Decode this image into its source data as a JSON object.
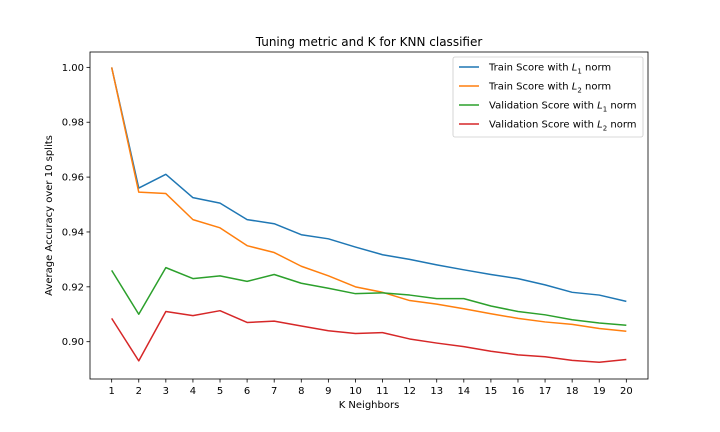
{
  "chart_data": {
    "type": "line",
    "title": "Tuning metric and K for KNN classifier",
    "xlabel": "K Neighbors",
    "ylabel": "Average Accuracy over 10 splits",
    "x": [
      1,
      2,
      3,
      4,
      5,
      6,
      7,
      8,
      9,
      10,
      11,
      12,
      13,
      14,
      15,
      16,
      17,
      18,
      19,
      20
    ],
    "xlim": [
      0.2,
      20.8
    ],
    "ylim": [
      0.8864,
      1.0056
    ],
    "yticks": [
      0.9,
      0.92,
      0.94,
      0.96,
      0.98,
      1.0
    ],
    "ytick_labels": [
      "0.90",
      "0.92",
      "0.94",
      "0.96",
      "0.98",
      "1.00"
    ],
    "grid": false,
    "legend_position": "top-right",
    "series": [
      {
        "name_prefix": "Train Score with ",
        "name_var": "L",
        "name_sub": "1",
        "name_suffix": " norm",
        "color": "#1f77b4",
        "values": [
          1.0,
          0.956,
          0.961,
          0.9525,
          0.9505,
          0.9445,
          0.943,
          0.939,
          0.9375,
          0.9345,
          0.9317,
          0.93,
          0.928,
          0.9262,
          0.9245,
          0.923,
          0.9207,
          0.918,
          0.917,
          0.9147
        ]
      },
      {
        "name_prefix": "Train Score with ",
        "name_var": "L",
        "name_sub": "2",
        "name_suffix": " norm",
        "color": "#ff7f0e",
        "values": [
          1.0,
          0.9545,
          0.954,
          0.9445,
          0.9415,
          0.935,
          0.9325,
          0.9275,
          0.924,
          0.92,
          0.918,
          0.915,
          0.9137,
          0.912,
          0.9102,
          0.9085,
          0.9072,
          0.9063,
          0.9048,
          0.9038
        ]
      },
      {
        "name_prefix": "Validation Score with ",
        "name_var": "L",
        "name_sub": "1",
        "name_suffix": " norm",
        "color": "#2ca02c",
        "values": [
          0.926,
          0.91,
          0.927,
          0.923,
          0.924,
          0.922,
          0.9245,
          0.9213,
          0.9195,
          0.9175,
          0.9178,
          0.917,
          0.9157,
          0.9157,
          0.913,
          0.911,
          0.9098,
          0.908,
          0.9068,
          0.906
        ]
      },
      {
        "name_prefix": "Validation Score with ",
        "name_var": "L",
        "name_sub": "2",
        "name_suffix": " norm",
        "color": "#d62728",
        "values": [
          0.9085,
          0.893,
          0.911,
          0.9095,
          0.9113,
          0.907,
          0.9075,
          0.9057,
          0.904,
          0.903,
          0.9033,
          0.901,
          0.8995,
          0.8982,
          0.8965,
          0.8952,
          0.8945,
          0.8932,
          0.8925,
          0.8935
        ]
      }
    ]
  }
}
